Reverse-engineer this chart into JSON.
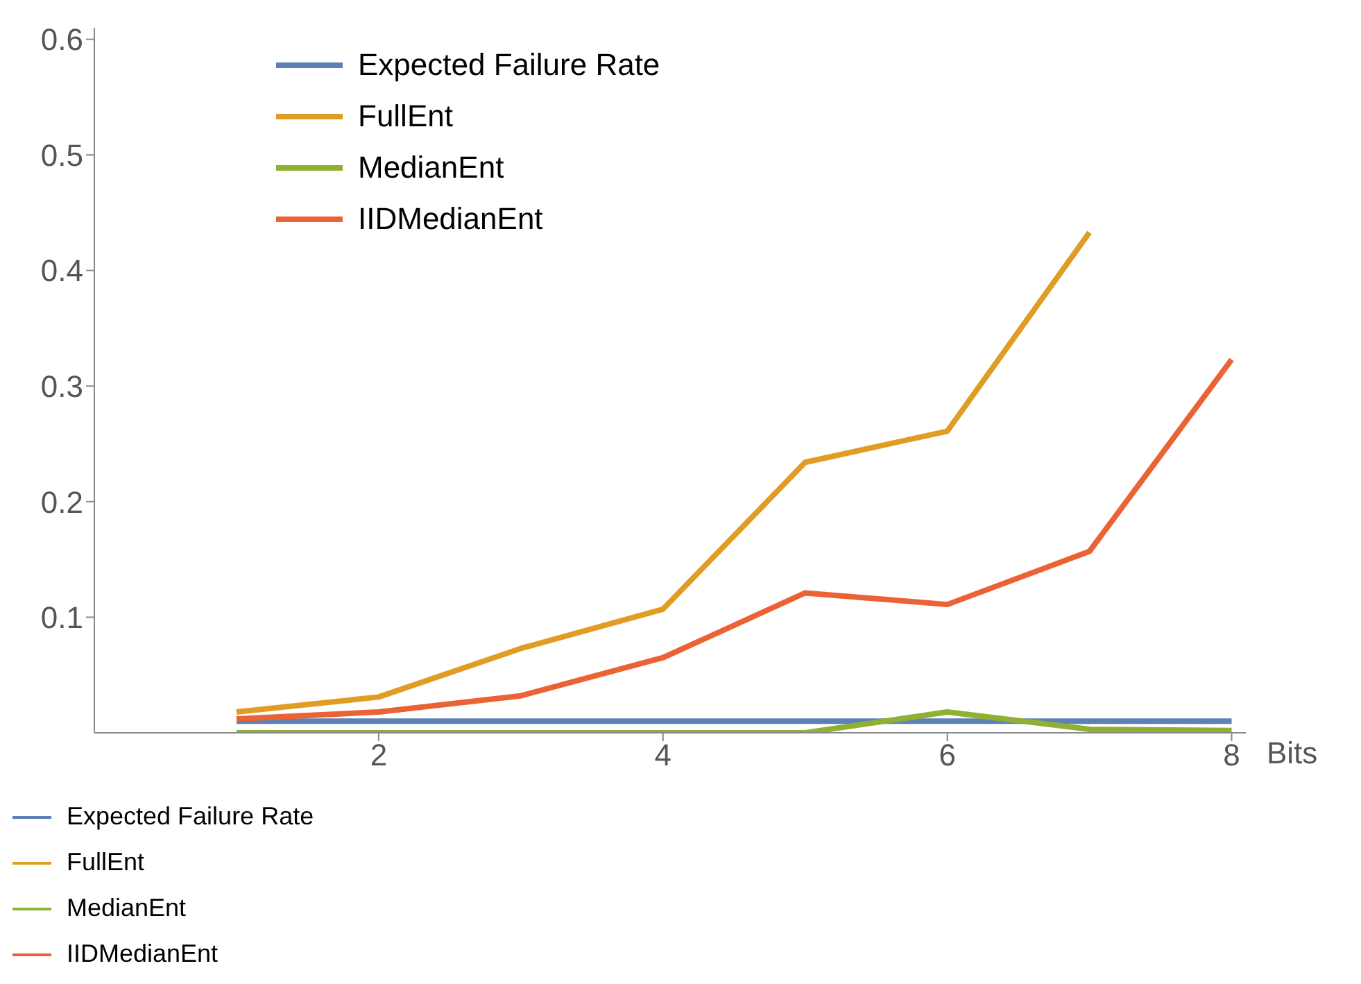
{
  "chart_data": {
    "type": "line",
    "xlabel": "Bits",
    "x": [
      1,
      2,
      3,
      4,
      5,
      6,
      7,
      8
    ],
    "series": [
      {
        "name": "Expected Failure Rate",
        "color": "#5e81b5",
        "values": [
          0.01,
          0.01,
          0.01,
          0.01,
          0.01,
          0.01,
          0.01,
          0.01
        ]
      },
      {
        "name": "FullEnt",
        "color": "#e19c24",
        "values": [
          0.018,
          0.031,
          0.073,
          0.107,
          0.234,
          0.261,
          0.433,
          null
        ]
      },
      {
        "name": "MedianEnt",
        "color": "#8fb032",
        "values": [
          0,
          0,
          0,
          0,
          0,
          0.018,
          0.003,
          0.002
        ]
      },
      {
        "name": "IIDMedianEnt",
        "color": "#eb6235",
        "values": [
          0.012,
          0.018,
          0.032,
          0.065,
          0.121,
          0.111,
          0.157,
          0.323
        ]
      }
    ],
    "xlim": [
      0,
      8.1
    ],
    "xticks": [
      2,
      4,
      6,
      8
    ],
    "ylim": [
      0,
      0.61
    ],
    "yticks": [
      0.1,
      0.2,
      0.3,
      0.4,
      0.5,
      0.6
    ],
    "grid": false,
    "legend": "bottom left",
    "marker": "none",
    "line_style": "solid"
  }
}
